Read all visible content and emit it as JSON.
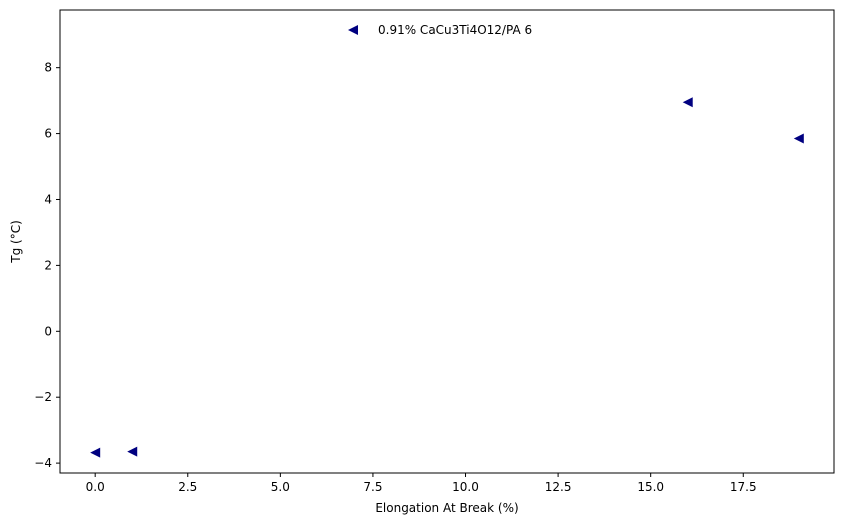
{
  "chart_data": {
    "type": "scatter",
    "xlabel": "Elongation At Break (%)",
    "ylabel": "Tg (°C)",
    "xlim": [
      -0.95,
      19.95
    ],
    "ylim": [
      -4.3,
      9.75
    ],
    "xticks": [
      0.0,
      2.5,
      5.0,
      7.5,
      10.0,
      12.5,
      15.0,
      17.5
    ],
    "xtick_labels": [
      "0.0",
      "2.5",
      "5.0",
      "7.5",
      "10.0",
      "12.5",
      "15.0",
      "17.5"
    ],
    "yticks": [
      -4,
      -2,
      0,
      2,
      4,
      6,
      8
    ],
    "ytick_labels": [
      "−4",
      "−2",
      "0",
      "2",
      "4",
      "6",
      "8"
    ],
    "grid": false,
    "legend_position": "top-center",
    "series": [
      {
        "name": "0.91% CaCu3Ti4O12/PA 6",
        "color": "#000080",
        "marker": "triangle-left",
        "x": [
          0,
          1,
          16,
          19
        ],
        "y": [
          -3.68,
          -3.65,
          6.95,
          5.85
        ]
      }
    ]
  }
}
